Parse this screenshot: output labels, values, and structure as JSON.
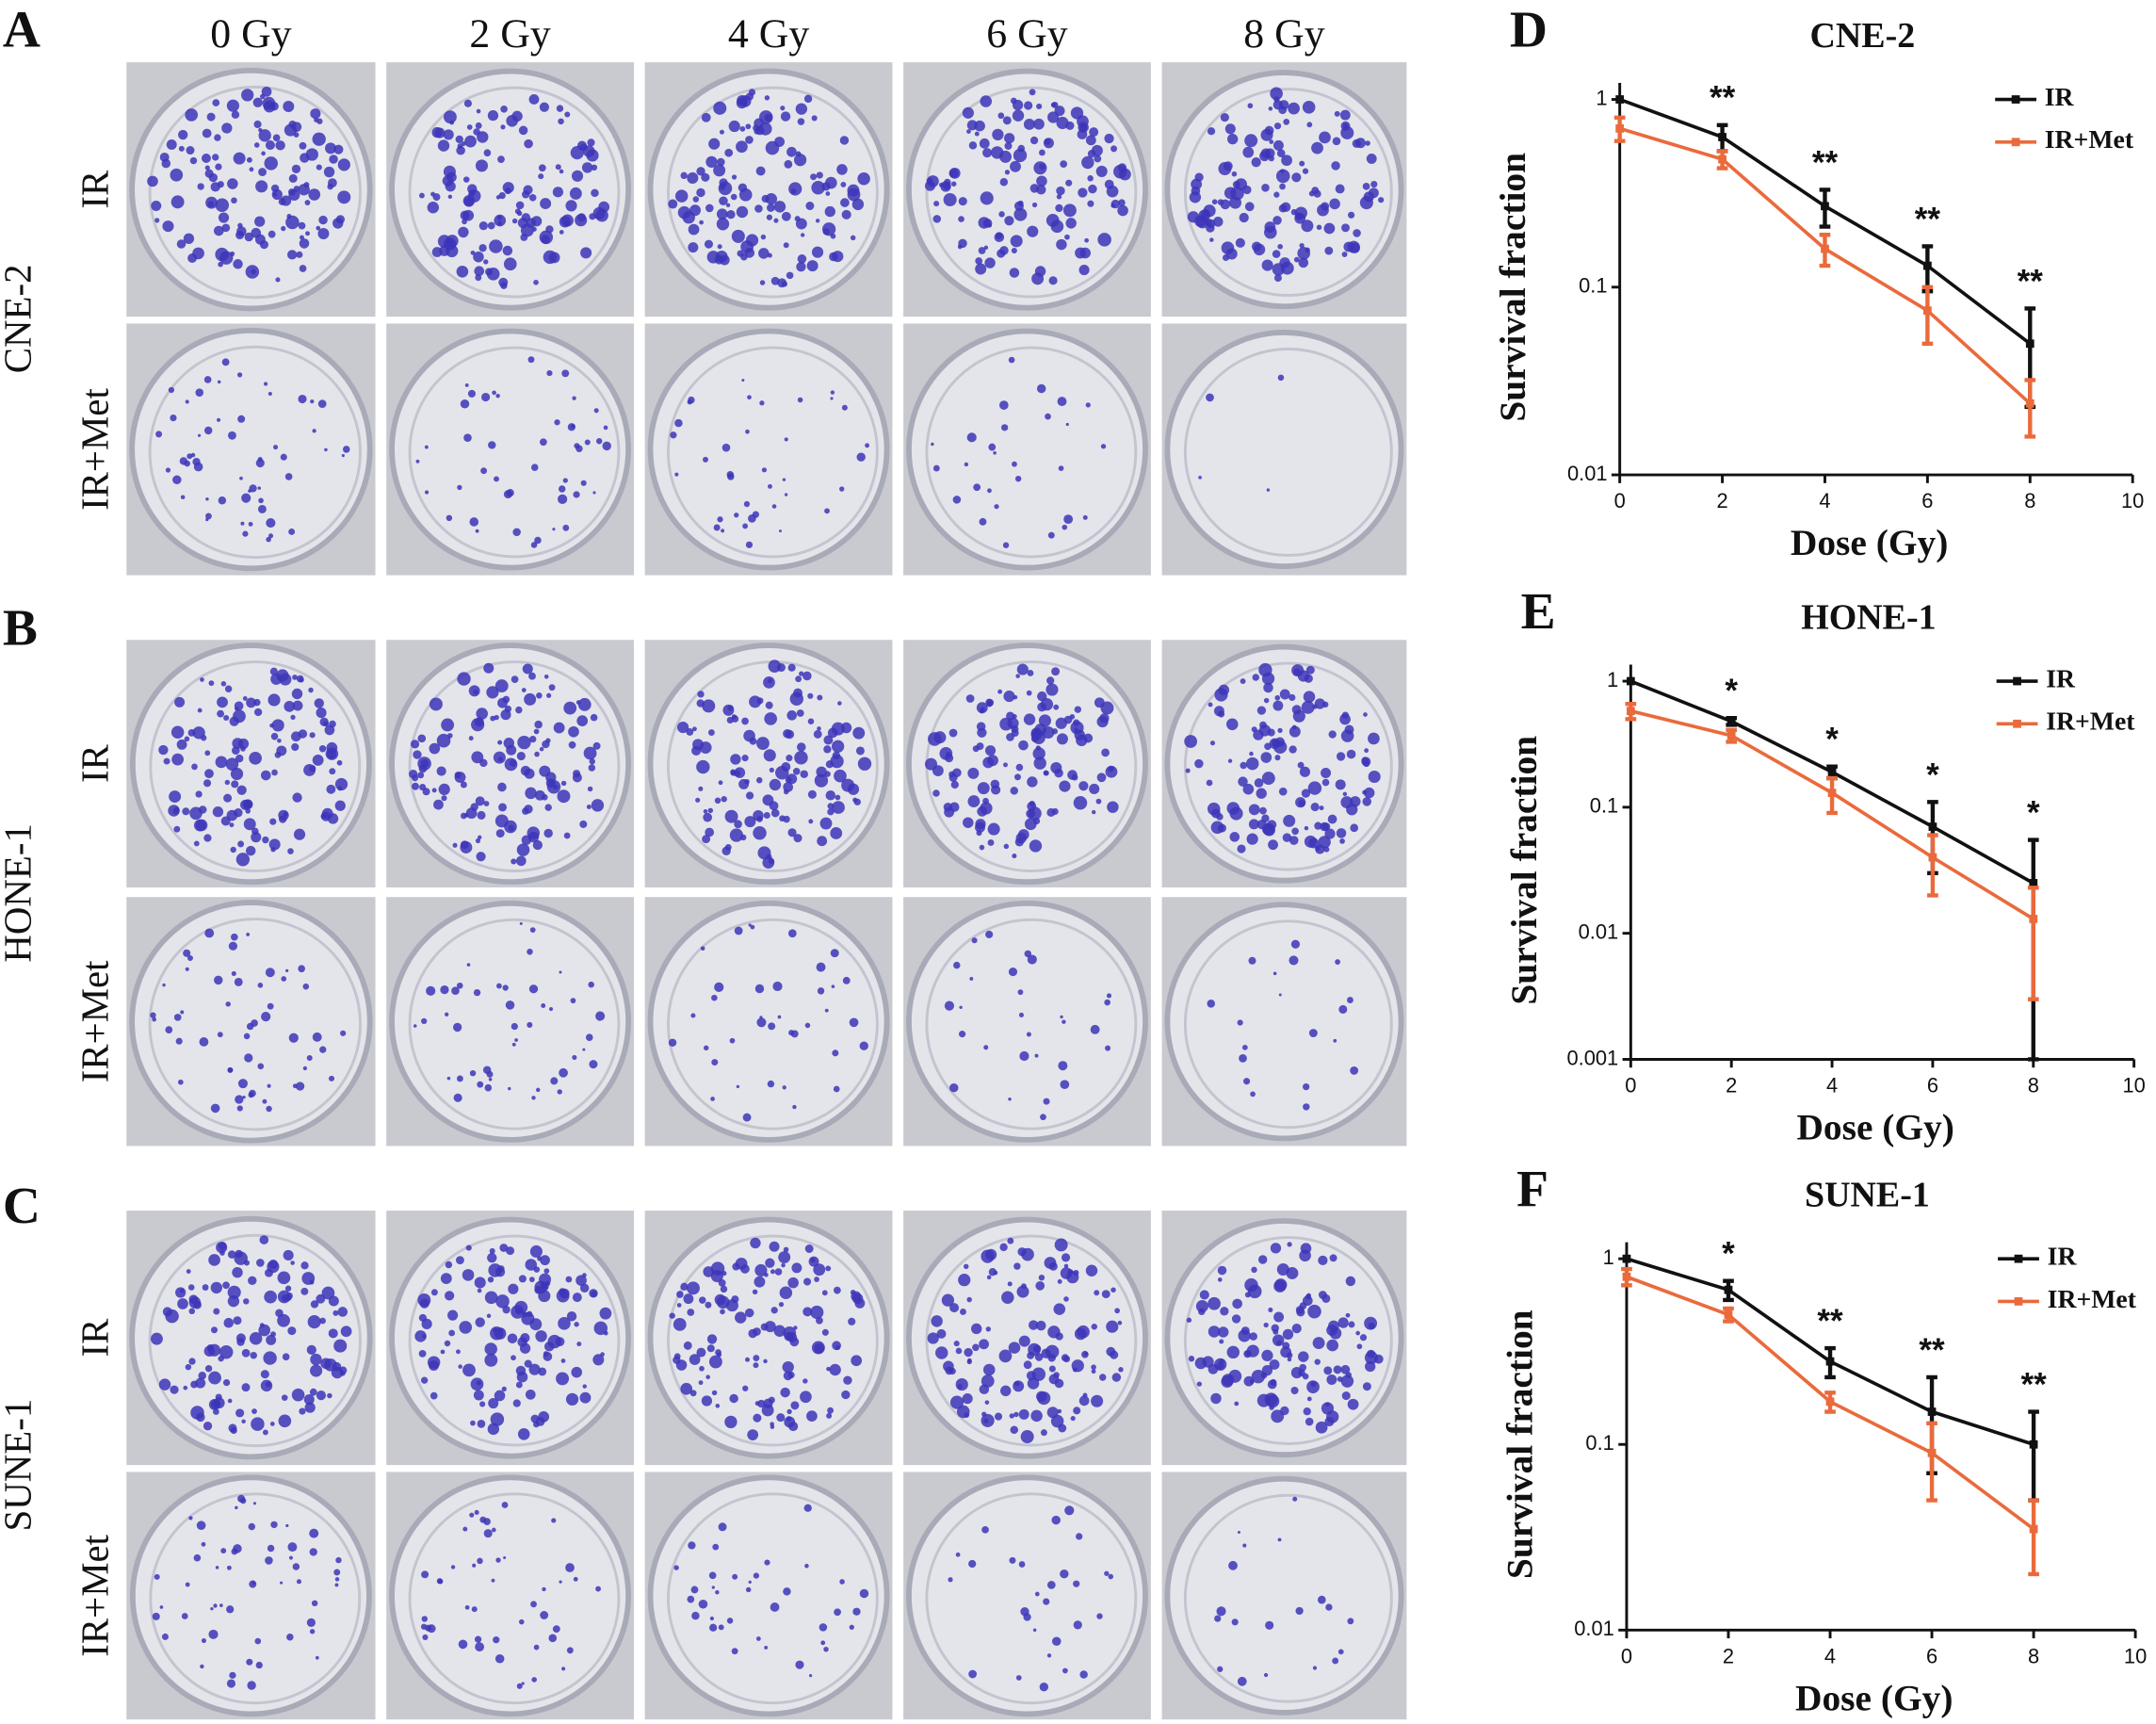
{
  "doses": [
    "0 Gy",
    "2 Gy",
    "4 Gy",
    "6 Gy",
    "8 Gy"
  ],
  "panels": [
    {
      "letter": "A",
      "cell_line": "CNE-2",
      "rows": [
        "IR",
        "IR+Met"
      ]
    },
    {
      "letter": "B",
      "cell_line": "HONE-1",
      "rows": [
        "IR",
        "IR+Met"
      ]
    },
    {
      "letter": "C",
      "cell_line": "SUNE-1",
      "rows": [
        "IR",
        "IR+Met"
      ]
    }
  ],
  "chart_data": [
    {
      "type": "line",
      "panel_label": "D",
      "title": "CNE-2",
      "x_label": "Dose (Gy)",
      "y_label": "Survival fraction",
      "x": [
        0,
        2,
        4,
        6,
        8
      ],
      "xlim": [
        0,
        10
      ],
      "xticks": [
        0,
        2,
        4,
        6,
        8,
        10
      ],
      "ylim": [
        0.01,
        1
      ],
      "yticks": [
        1,
        0.1,
        0.01
      ],
      "log_y": true,
      "legend": "top-right",
      "series": [
        {
          "name": "IR",
          "color": "#111111",
          "values": [
            1,
            0.63,
            0.27,
            0.13,
            0.05
          ],
          "errors": [
            0,
            0.1,
            0.06,
            0.035,
            0.027
          ]
        },
        {
          "name": "IR+Met",
          "color": "#ea6a3c",
          "values": [
            0.7,
            0.48,
            0.16,
            0.075,
            0.024
          ],
          "errors": [
            0.1,
            0.05,
            0.03,
            0.025,
            0.008
          ]
        }
      ],
      "significance_x": [
        2,
        4,
        6,
        8
      ],
      "significance": [
        "**",
        "**",
        "**",
        "**"
      ]
    },
    {
      "type": "line",
      "panel_label": "E",
      "title": "HONE-1",
      "x_label": "Dose (Gy)",
      "y_label": "Survival fraction",
      "x": [
        0,
        2,
        4,
        6,
        8
      ],
      "xlim": [
        0,
        10
      ],
      "xticks": [
        0,
        2,
        4,
        6,
        8,
        10
      ],
      "ylim": [
        0.001,
        1
      ],
      "yticks": [
        1,
        0.1,
        0.01,
        0.001
      ],
      "log_y": true,
      "legend": "top-right",
      "series": [
        {
          "name": "IR",
          "color": "#111111",
          "values": [
            1,
            0.48,
            0.19,
            0.07,
            0.025
          ],
          "errors": [
            0,
            0.03,
            0.02,
            0.04,
            0.03
          ]
        },
        {
          "name": "IR+Met",
          "color": "#ea6a3c",
          "values": [
            0.58,
            0.37,
            0.13,
            0.04,
            0.013
          ],
          "errors": [
            0.08,
            0.04,
            0.04,
            0.02,
            0.01
          ]
        }
      ],
      "significance_x": [
        2,
        4,
        6,
        8
      ],
      "significance": [
        "*",
        "*",
        "*",
        "*"
      ]
    },
    {
      "type": "line",
      "panel_label": "F",
      "title": "SUNE-1",
      "x_label": "Dose (Gy)",
      "y_label": "Survival fraction",
      "x": [
        0,
        2,
        4,
        6,
        8
      ],
      "xlim": [
        0,
        10
      ],
      "xticks": [
        0,
        2,
        4,
        6,
        8,
        10
      ],
      "ylim": [
        0.01,
        1
      ],
      "yticks": [
        1,
        0.1,
        0.01
      ],
      "log_y": true,
      "legend": "top-right",
      "series": [
        {
          "name": "IR",
          "color": "#111111",
          "values": [
            1,
            0.68,
            0.28,
            0.15,
            0.1
          ],
          "errors": [
            0,
            0.08,
            0.05,
            0.08,
            0.05
          ]
        },
        {
          "name": "IR+Met",
          "color": "#ea6a3c",
          "values": [
            0.8,
            0.5,
            0.17,
            0.09,
            0.035
          ],
          "errors": [
            0.08,
            0.04,
            0.02,
            0.04,
            0.015
          ]
        }
      ],
      "significance_x": [
        2,
        4,
        6,
        8
      ],
      "significance": [
        "*",
        "**",
        "**",
        "**"
      ]
    }
  ]
}
